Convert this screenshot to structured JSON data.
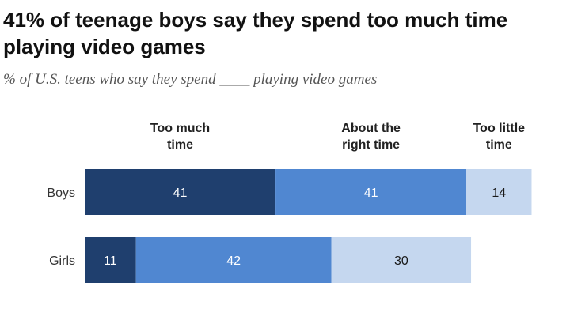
{
  "title": "41% of teenage boys say they spend too much time playing video games",
  "subtitle": "% of U.S. teens who say they spend ____ playing video games",
  "chart_data": {
    "type": "bar",
    "orientation": "horizontal",
    "stacked": true,
    "categories": [
      "Boys",
      "Girls"
    ],
    "series": [
      {
        "name": "Too much time",
        "values": [
          41,
          11
        ],
        "color": "#1f3f6e",
        "label_color": "#ffffff"
      },
      {
        "name": "About the right time",
        "values": [
          41,
          42
        ],
        "color": "#5087d1",
        "label_color": "#ffffff"
      },
      {
        "name": "Too little time",
        "values": [
          14,
          30
        ],
        "color": "#c5d7ef",
        "label_color": "#1a1a1a"
      }
    ],
    "xlim": [
      0,
      100
    ],
    "grid": false,
    "legend": "column headers above bars"
  }
}
